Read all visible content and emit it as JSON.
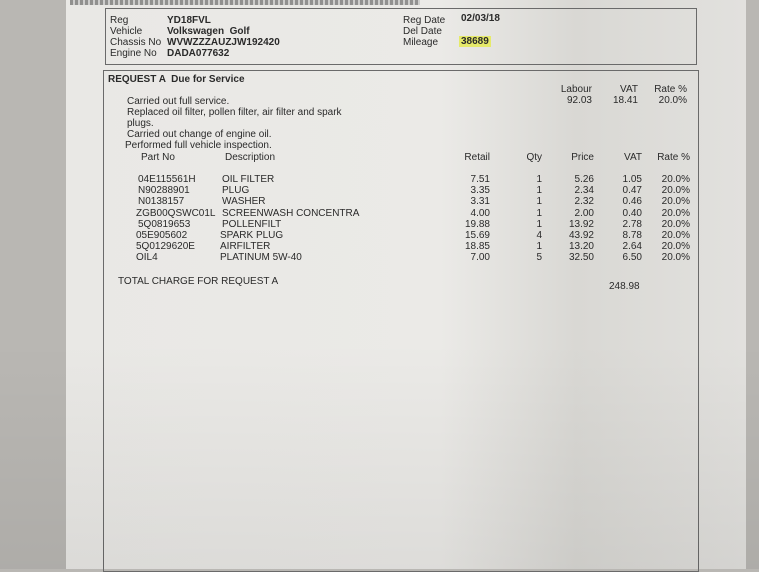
{
  "vehicle": {
    "reg_label": "Reg",
    "reg": "YD18FVL",
    "vehicle_label": "Vehicle",
    "vehicle": "Volkswagen  Golf",
    "chassis_label": "Chassis No",
    "chassis": "WVWZZZAUZJW192420",
    "engine_label": "Engine No",
    "engine": "DADA077632",
    "reg_date_label": "Reg Date",
    "reg_date": "02/03/18",
    "del_date_label": "Del Date",
    "mileage_label": "Mileage",
    "mileage": "38689",
    "highlight_color": "#e6ea6a"
  },
  "request": {
    "title": "REQUEST A  Due for Service",
    "notes": [
      "Carried out full service.",
      "Replaced oil filter, pollen filter, air filter and spark",
      "plugs.",
      "Carried out change of engine oil.",
      "Performed full vehicle inspection."
    ],
    "labour": {
      "labour_label": "Labour",
      "vat_label": "VAT",
      "rate_label": "Rate %",
      "labour": "92.03",
      "vat": "18.41",
      "rate": "20.0%"
    },
    "columns": [
      "Part No",
      "Description",
      "Retail",
      "Qty",
      "Price",
      "VAT",
      "Rate %"
    ],
    "parts": [
      [
        "04E115561H",
        "OIL FILTER",
        "7.51",
        "1",
        "5.26",
        "1.05",
        "20.0%"
      ],
      [
        "N90288901",
        "PLUG",
        "3.35",
        "1",
        "2.34",
        "0.47",
        "20.0%"
      ],
      [
        "N0138157",
        "WASHER",
        "3.31",
        "1",
        "2.32",
        "0.46",
        "20.0%"
      ],
      [
        "ZGB00QSWC01L",
        "SCREENWASH CONCENTRA",
        "4.00",
        "1",
        "2.00",
        "0.40",
        "20.0%"
      ],
      [
        "5Q0819653",
        "POLLENFILT",
        "19.88",
        "1",
        "13.92",
        "2.78",
        "20.0%"
      ],
      [
        "05E905602",
        "SPARK PLUG",
        "15.69",
        "4",
        "43.92",
        "8.78",
        "20.0%"
      ],
      [
        "5Q0129620E",
        "AIRFILTER",
        "18.85",
        "1",
        "13.20",
        "2.64",
        "20.0%"
      ],
      [
        "OIL4",
        "PLATINUM 5W-40",
        "7.00",
        "5",
        "32.50",
        "6.50",
        "20.0%"
      ]
    ],
    "total_label": "TOTAL CHARGE FOR REQUEST A",
    "total": "248.98"
  }
}
